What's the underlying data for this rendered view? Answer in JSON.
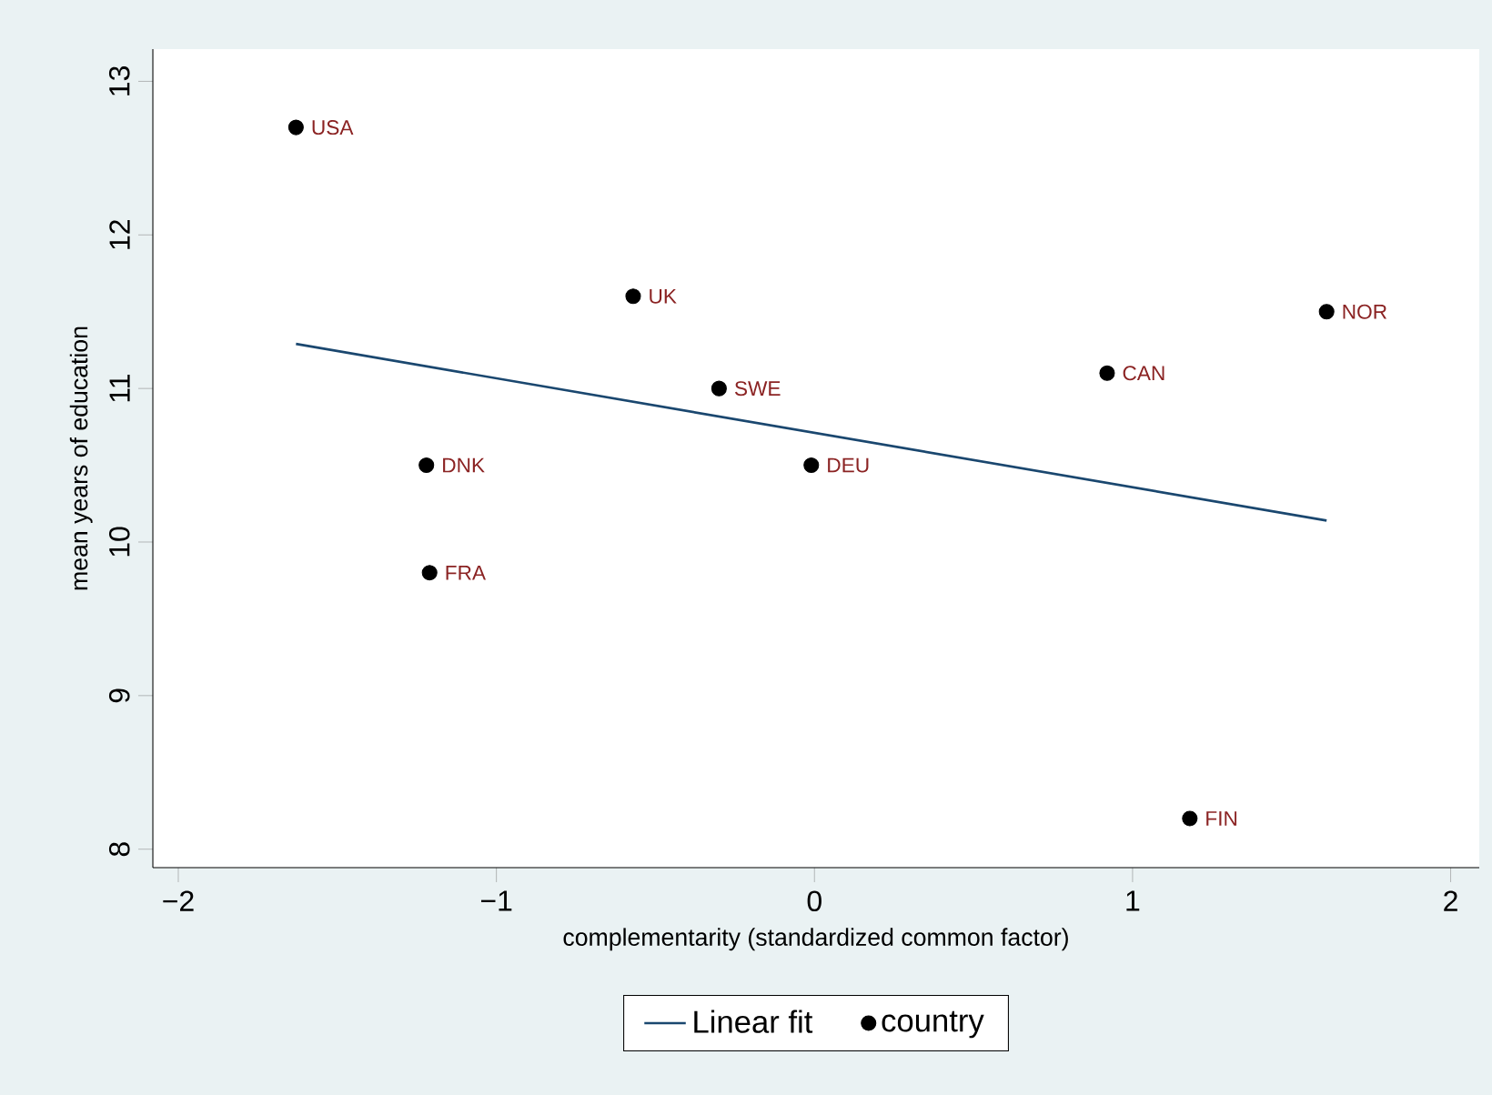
{
  "chart_data": {
    "type": "scatter",
    "xlabel": "complementarity (standardized common factor)",
    "ylabel": "mean years of education",
    "xlim": [
      -2.08,
      2.09
    ],
    "ylim": [
      7.88,
      13.21
    ],
    "xticks": [
      {
        "value": -2,
        "label": "−2"
      },
      {
        "value": -1,
        "label": "−1"
      },
      0,
      1,
      2
    ],
    "yticks": [
      8,
      9,
      10,
      11,
      12,
      13
    ],
    "legend": "bottom",
    "series": [
      {
        "name": "Linear fit",
        "type": "line",
        "x": [
          -1.63,
          1.61
        ],
        "values": [
          11.29,
          10.14
        ],
        "color": "#1a476f",
        "marker": "none"
      },
      {
        "name": "country",
        "x": [
          -1.63,
          -0.57,
          -0.3,
          -1.22,
          -1.21,
          -0.01,
          0.92,
          1.61,
          1.18
        ],
        "values": [
          12.7,
          11.6,
          11.0,
          10.5,
          9.8,
          10.5,
          11.1,
          11.5,
          8.2
        ],
        "color": "#000000",
        "marker": "circle"
      }
    ],
    "annotations": [
      {
        "text": "USA",
        "x": -1.63,
        "y": 12.7
      },
      {
        "text": "UK",
        "x": -0.57,
        "y": 11.6
      },
      {
        "text": "SWE",
        "x": -0.3,
        "y": 11.0
      },
      {
        "text": "DNK",
        "x": -1.22,
        "y": 10.5
      },
      {
        "text": "FRA",
        "x": -1.21,
        "y": 9.8
      },
      {
        "text": "DEU",
        "x": -0.01,
        "y": 10.5
      },
      {
        "text": "CAN",
        "x": 0.92,
        "y": 11.1
      },
      {
        "text": "NOR",
        "x": 1.61,
        "y": 11.5
      },
      {
        "text": "FIN",
        "x": 1.18,
        "y": 8.2
      }
    ]
  }
}
